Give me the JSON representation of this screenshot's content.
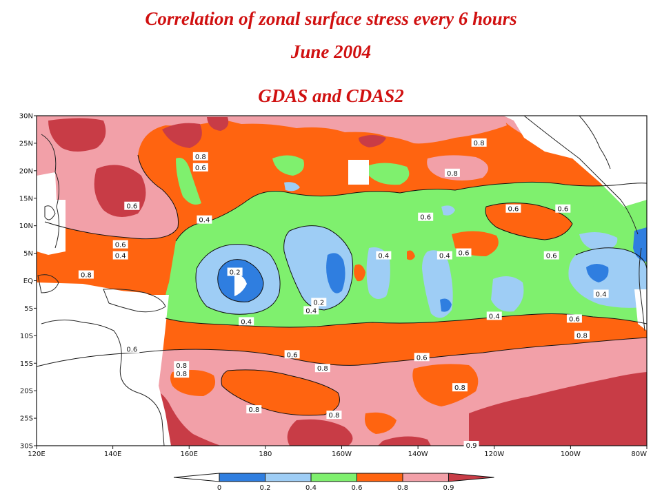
{
  "title": {
    "line1": "Correlation of zonal surface stress every 6 hours",
    "line2": "June 2004",
    "line3": "GDAS and CDAS2"
  },
  "map": {
    "lon_range": [
      120,
      280
    ],
    "lat_range": [
      -30,
      30
    ],
    "lon_tick_labels": [
      "120E",
      "140E",
      "160E",
      "180",
      "160W",
      "140W",
      "120W",
      "100W",
      "80W"
    ],
    "lat_tick_labels": [
      "30N",
      "25N",
      "20N",
      "15N",
      "10N",
      "5N",
      "EQ",
      "5S",
      "10S",
      "15S",
      "20S",
      "25S",
      "30S"
    ],
    "contour_labels": [
      {
        "text": "0.8",
        "lon": 236,
        "lat": 25
      },
      {
        "text": "0.8",
        "lon": 163,
        "lat": 22.5
      },
      {
        "text": "0.6",
        "lon": 163,
        "lat": 20.5
      },
      {
        "text": "0.8",
        "lon": 229,
        "lat": 19.5
      },
      {
        "text": "0.6",
        "lon": 145,
        "lat": 13.5
      },
      {
        "text": "0.6",
        "lon": 245,
        "lat": 13
      },
      {
        "text": "0.6",
        "lon": 258,
        "lat": 13
      },
      {
        "text": "0.6",
        "lon": 222,
        "lat": 11.5
      },
      {
        "text": "0.4",
        "lon": 164,
        "lat": 11
      },
      {
        "text": "0.6",
        "lon": 142,
        "lat": 6.5
      },
      {
        "text": "0.4",
        "lon": 142,
        "lat": 4.5
      },
      {
        "text": "0.6",
        "lon": 232,
        "lat": 5
      },
      {
        "text": "0.4",
        "lon": 211,
        "lat": 4.5
      },
      {
        "text": "0.4",
        "lon": 227,
        "lat": 4.5
      },
      {
        "text": "0.6",
        "lon": 255,
        "lat": 4.5
      },
      {
        "text": "0.8",
        "lon": 133,
        "lat": 1
      },
      {
        "text": "0.2",
        "lon": 172,
        "lat": 1.5
      },
      {
        "text": "0.4",
        "lon": 268,
        "lat": -2.5
      },
      {
        "text": "0.2",
        "lon": 194,
        "lat": -4
      },
      {
        "text": "0.4",
        "lon": 192,
        "lat": -5.5
      },
      {
        "text": "0.4",
        "lon": 240,
        "lat": -6.5
      },
      {
        "text": "0.6",
        "lon": 261,
        "lat": -7
      },
      {
        "text": "0.4",
        "lon": 175,
        "lat": -7.5
      },
      {
        "text": "0.8",
        "lon": 263,
        "lat": -10
      },
      {
        "text": "0.6",
        "lon": 145,
        "lat": -12.5
      },
      {
        "text": "0.6",
        "lon": 187,
        "lat": -13.5
      },
      {
        "text": "0.6",
        "lon": 221,
        "lat": -14
      },
      {
        "text": "0.8",
        "lon": 158,
        "lat": -15.5
      },
      {
        "text": "0.8",
        "lon": 158,
        "lat": -17
      },
      {
        "text": "0.8",
        "lon": 195,
        "lat": -16
      },
      {
        "text": "0.8",
        "lon": 231,
        "lat": -19.5
      },
      {
        "text": "0.8",
        "lon": 177,
        "lat": -23.5
      },
      {
        "text": "0.8",
        "lon": 198,
        "lat": -24.5
      },
      {
        "text": "0.9",
        "lon": 234,
        "lat": -30
      }
    ]
  },
  "colorbar": {
    "labels": [
      "0",
      "0.2",
      "0.4",
      "0.6",
      "0.8",
      "0.9"
    ],
    "colors": [
      "#ffffff",
      "#2f7ee0",
      "#9ecdf5",
      "#7ff06e",
      "#ff6410",
      "#f2a0a8",
      "#c83c46"
    ]
  },
  "colors": {
    "title": "#d01010",
    "c_lt_0": "#ffffff",
    "c_0_02": "#2f7ee0",
    "c_02_04": "#9ecdf5",
    "c_04_06": "#7ff06e",
    "c_06_08": "#ff6410",
    "c_08_09": "#f2a0a8",
    "c_gt_09": "#c83c46"
  }
}
